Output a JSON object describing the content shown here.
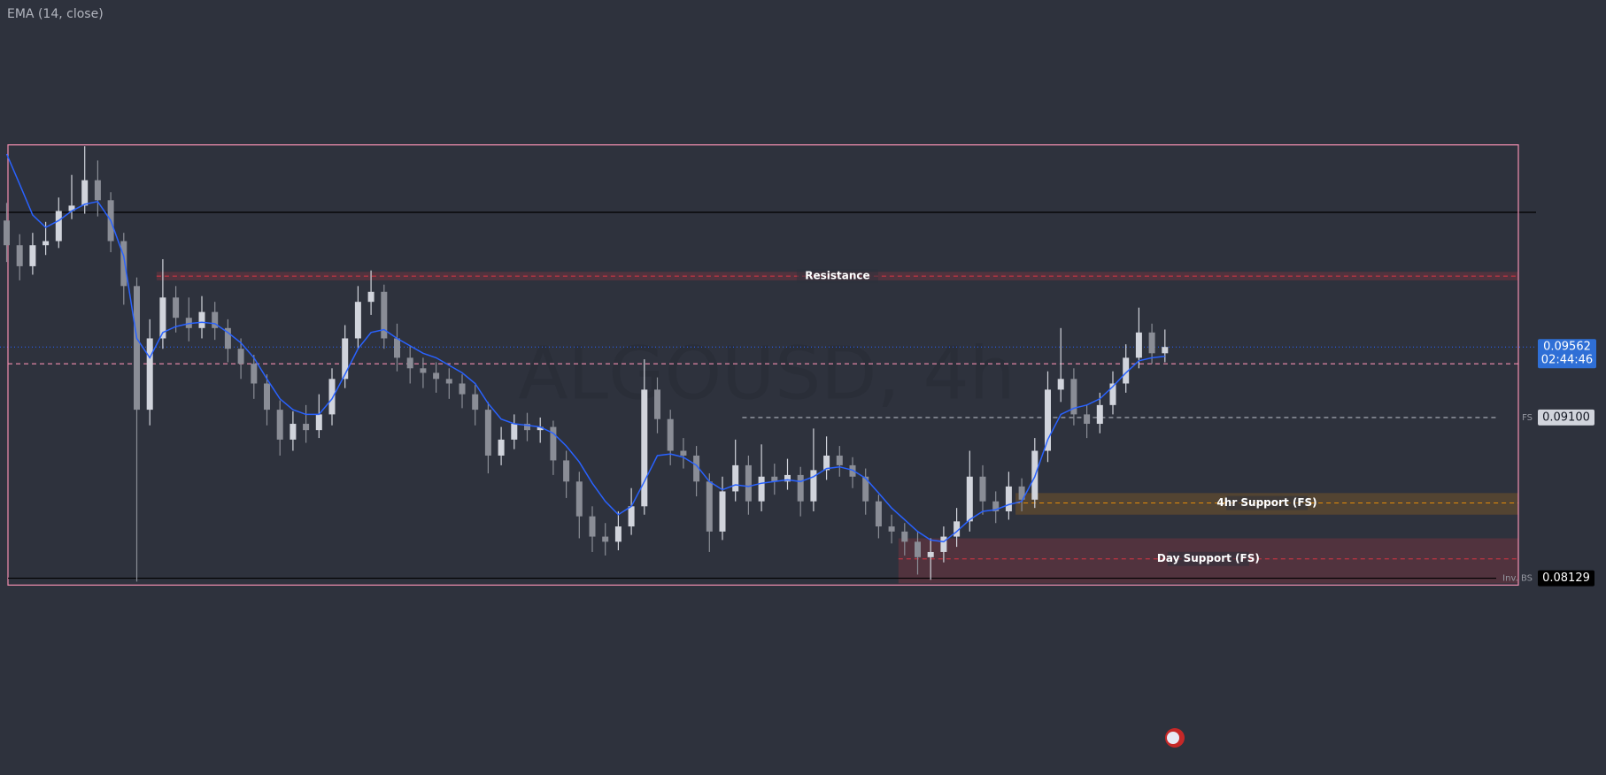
{
  "chart_data": {
    "type": "candlestick",
    "indicator_label": "EMA (14, close)",
    "watermark": "ALGOUSD, 4h",
    "log_scale": true,
    "ylim": [
      0.0708,
      0.122
    ],
    "candles": {
      "up_color": "#d1d4dc",
      "down_color": "#8a8d96",
      "open": [
        0.1045,
        0.1027,
        0.1012,
        0.1027,
        0.103,
        0.1052,
        0.1056,
        0.1075,
        0.106,
        0.103,
        0.0998,
        0.0915,
        0.0962,
        0.099,
        0.0976,
        0.0969,
        0.098,
        0.0969,
        0.0955,
        0.0945,
        0.0932,
        0.0915,
        0.0896,
        0.0906,
        0.0902,
        0.0912,
        0.0935,
        0.0962,
        0.0987,
        0.0994,
        0.0962,
        0.0949,
        0.0942,
        0.0939,
        0.0935,
        0.0932,
        0.0925,
        0.0915,
        0.0886,
        0.0896,
        0.0906,
        0.0902,
        0.0904,
        0.0883,
        0.087,
        0.0849,
        0.0837,
        0.0834,
        0.0843,
        0.0855,
        0.0928,
        0.0909,
        0.0889,
        0.0886,
        0.087,
        0.084,
        0.0864,
        0.088,
        0.0858,
        0.0873,
        0.087,
        0.0874,
        0.0858,
        0.0877,
        0.0886,
        0.088,
        0.0873,
        0.0858,
        0.0843,
        0.084,
        0.0834,
        0.0825,
        0.0828,
        0.0837,
        0.0846,
        0.0873,
        0.0858,
        0.0852,
        0.0867,
        0.0859,
        0.0889,
        0.0928,
        0.0935,
        0.0912,
        0.0906,
        0.0918,
        0.0932,
        0.0949,
        0.0966,
        0.0952
      ],
      "high": [
        0.1058,
        0.1035,
        0.1036,
        0.1044,
        0.1062,
        0.1079,
        0.1101,
        0.109,
        0.1066,
        0.1036,
        0.1004,
        0.0975,
        0.1017,
        0.0998,
        0.099,
        0.0991,
        0.0987,
        0.0975,
        0.0962,
        0.0951,
        0.0938,
        0.0921,
        0.0914,
        0.0918,
        0.0925,
        0.0942,
        0.0971,
        0.0998,
        0.1009,
        0.0999,
        0.0972,
        0.0957,
        0.0949,
        0.0946,
        0.0942,
        0.0938,
        0.0931,
        0.092,
        0.0904,
        0.0912,
        0.0913,
        0.091,
        0.0908,
        0.0889,
        0.0876,
        0.0855,
        0.0845,
        0.0852,
        0.0866,
        0.0948,
        0.0936,
        0.0915,
        0.0897,
        0.0892,
        0.0875,
        0.0873,
        0.0896,
        0.0886,
        0.0893,
        0.0881,
        0.0884,
        0.0879,
        0.0903,
        0.0898,
        0.0892,
        0.0885,
        0.0878,
        0.0862,
        0.085,
        0.0845,
        0.084,
        0.0836,
        0.0843,
        0.0854,
        0.0889,
        0.088,
        0.0864,
        0.0876,
        0.0872,
        0.0897,
        0.094,
        0.0969,
        0.0942,
        0.0918,
        0.0926,
        0.094,
        0.0958,
        0.0983,
        0.0972,
        0.0968
      ],
      "low": [
        0.1015,
        0.1002,
        0.1006,
        0.102,
        0.1025,
        0.1046,
        0.105,
        0.1048,
        0.1022,
        0.0985,
        0.0811,
        0.0905,
        0.0955,
        0.0966,
        0.096,
        0.0962,
        0.0961,
        0.0946,
        0.0935,
        0.0922,
        0.0905,
        0.0886,
        0.0889,
        0.0894,
        0.0897,
        0.0905,
        0.0929,
        0.0955,
        0.0978,
        0.0955,
        0.094,
        0.0932,
        0.0929,
        0.0926,
        0.0922,
        0.0916,
        0.0905,
        0.0875,
        0.088,
        0.089,
        0.0895,
        0.0894,
        0.0874,
        0.086,
        0.0836,
        0.0828,
        0.0826,
        0.0829,
        0.0838,
        0.085,
        0.09,
        0.088,
        0.0878,
        0.0861,
        0.0828,
        0.0835,
        0.0858,
        0.085,
        0.0852,
        0.0862,
        0.0865,
        0.0849,
        0.0852,
        0.0871,
        0.0873,
        0.0866,
        0.085,
        0.0836,
        0.0833,
        0.0826,
        0.0815,
        0.0812,
        0.0822,
        0.0831,
        0.084,
        0.085,
        0.0845,
        0.0847,
        0.0852,
        0.0854,
        0.0882,
        0.092,
        0.0905,
        0.0897,
        0.09,
        0.0912,
        0.0926,
        0.0942,
        0.0945,
        0.0946
      ],
      "close": [
        0.1027,
        0.1012,
        0.1027,
        0.103,
        0.1052,
        0.1056,
        0.1075,
        0.106,
        0.103,
        0.0998,
        0.0915,
        0.0962,
        0.099,
        0.0976,
        0.0969,
        0.098,
        0.0969,
        0.0955,
        0.0945,
        0.0932,
        0.0915,
        0.0896,
        0.0906,
        0.0902,
        0.0912,
        0.0935,
        0.0962,
        0.0987,
        0.0994,
        0.0962,
        0.0949,
        0.0942,
        0.0939,
        0.0935,
        0.0932,
        0.0925,
        0.0915,
        0.0886,
        0.0896,
        0.0906,
        0.0902,
        0.0904,
        0.0883,
        0.087,
        0.0849,
        0.0837,
        0.0834,
        0.0843,
        0.0855,
        0.0928,
        0.0909,
        0.0889,
        0.0886,
        0.087,
        0.084,
        0.0864,
        0.088,
        0.0858,
        0.0873,
        0.087,
        0.0874,
        0.0858,
        0.0877,
        0.0886,
        0.088,
        0.0873,
        0.0858,
        0.0843,
        0.084,
        0.0834,
        0.0825,
        0.0828,
        0.0837,
        0.0846,
        0.0873,
        0.0858,
        0.0852,
        0.0867,
        0.0859,
        0.0889,
        0.0928,
        0.0935,
        0.0912,
        0.0906,
        0.0918,
        0.0932,
        0.0949,
        0.0966,
        0.0952,
        0.09562
      ]
    },
    "ema": {
      "color": "#2962ff",
      "values": [
        0.1095,
        0.1072,
        0.1049,
        0.104,
        0.1045,
        0.1052,
        0.1057,
        0.1059,
        0.1045,
        0.1019,
        0.0962,
        0.0949,
        0.0966,
        0.097,
        0.0972,
        0.0973,
        0.0972,
        0.0966,
        0.0959,
        0.0949,
        0.0935,
        0.0922,
        0.0915,
        0.0912,
        0.0912,
        0.0922,
        0.0938,
        0.0955,
        0.0966,
        0.0968,
        0.0962,
        0.0957,
        0.0952,
        0.0949,
        0.0944,
        0.0939,
        0.0932,
        0.0919,
        0.0909,
        0.0906,
        0.0905,
        0.0904,
        0.09,
        0.0892,
        0.0882,
        0.0869,
        0.0858,
        0.085,
        0.0855,
        0.087,
        0.0886,
        0.0887,
        0.0885,
        0.088,
        0.087,
        0.0865,
        0.0868,
        0.0867,
        0.0869,
        0.087,
        0.0871,
        0.087,
        0.0873,
        0.0878,
        0.0879,
        0.0877,
        0.0872,
        0.0863,
        0.0854,
        0.0847,
        0.084,
        0.0835,
        0.0834,
        0.084,
        0.0847,
        0.0852,
        0.0853,
        0.0856,
        0.0858,
        0.0873,
        0.0896,
        0.0912,
        0.0916,
        0.0918,
        0.0922,
        0.093,
        0.0939,
        0.0947,
        0.0949,
        0.095
      ]
    },
    "price_label": {
      "value": 0.09562,
      "countdown": "02:44:46"
    },
    "box": {
      "top": 0.1102,
      "bottom": 0.0809,
      "color": "#f48fb1"
    },
    "lines": [
      {
        "price": 0.1051,
        "color": "#000000",
        "style": "solid"
      },
      {
        "price": 0.0945,
        "color": "#f48fb1",
        "style": "dashed"
      }
    ],
    "zones": [
      {
        "label": "Resistance",
        "top": 0.1008,
        "bottom": 0.1002,
        "line": 0.1005,
        "from_candle": 12,
        "color": "#f23645"
      },
      {
        "label": "4hr Support (FS)",
        "top": 0.0863,
        "bottom": 0.085,
        "line": 0.0857,
        "from_candle": 78,
        "color": "#ff9800"
      },
      {
        "label": "Day Support (FS)",
        "top": 0.0836,
        "bottom": 0.081,
        "line": 0.0824,
        "from_candle": 69,
        "color": "#f23645"
      }
    ],
    "levels": [
      {
        "label": "FS",
        "price": {
          "value": 0.091,
          "label": "0.09100"
        },
        "from_candle": 57,
        "color": "#b2b5be",
        "style": "dashed"
      },
      {
        "label": "Inv. BS",
        "price": 0.08129,
        "from_candle": 0,
        "color": "#000000",
        "style": "solid"
      }
    ]
  }
}
